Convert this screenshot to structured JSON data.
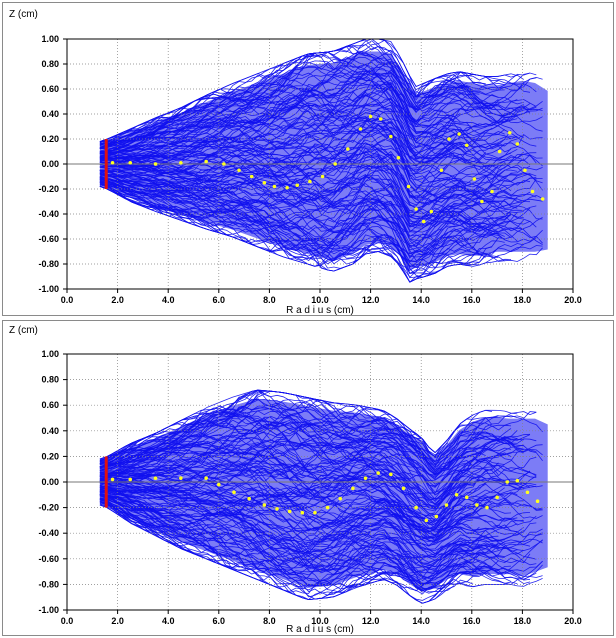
{
  "colors": {
    "trajectory": "#1010ee",
    "particle": "#ffff20",
    "emitter": "#e01010",
    "grid": "#808080",
    "zero_line": "#777777"
  },
  "chart_data": [
    {
      "type": "line",
      "title": "",
      "xlabel": "R a d i u s (cm)",
      "ylabel": "Z (cm)",
      "xlim": [
        0.0,
        20.0
      ],
      "ylim": [
        -1.0,
        1.0
      ],
      "xticks": [
        "0.0",
        "2.0",
        "4.0",
        "6.0",
        "8.0",
        "10.0",
        "12.0",
        "14.0",
        "16.0",
        "18.0",
        "20.0"
      ],
      "yticks": [
        "1.00",
        "0.80",
        "0.60",
        "0.40",
        "0.20",
        "0.00",
        "-0.20",
        "-0.40",
        "-0.60",
        "-0.80",
        "-1.00"
      ],
      "grid": true,
      "emitter": {
        "x": 1.55,
        "y_range": [
          -0.2,
          0.2
        ]
      },
      "envelope": {
        "x": [
          1.3,
          1.6,
          2.5,
          3.5,
          4.5,
          5.5,
          6.5,
          7.5,
          8.5,
          9.5,
          10.5,
          11.3,
          11.8,
          12.3,
          12.8,
          13.2,
          13.5,
          13.8,
          14.5,
          15.0,
          15.5,
          16.0,
          16.5,
          17.0,
          17.5,
          18.0,
          18.5,
          19.0
        ],
        "upper": [
          0.18,
          0.2,
          0.28,
          0.37,
          0.45,
          0.55,
          0.64,
          0.72,
          0.8,
          0.88,
          0.9,
          0.96,
          1.0,
          1.0,
          0.98,
          0.85,
          0.72,
          0.62,
          0.68,
          0.72,
          0.74,
          0.72,
          0.7,
          0.7,
          0.72,
          0.74,
          0.72,
          0.65
        ],
        "lower": [
          -0.18,
          -0.2,
          -0.3,
          -0.38,
          -0.45,
          -0.52,
          -0.58,
          -0.66,
          -0.74,
          -0.8,
          -0.86,
          -0.8,
          -0.72,
          -0.7,
          -0.74,
          -0.82,
          -0.95,
          -0.92,
          -0.88,
          -0.82,
          -0.8,
          -0.82,
          -0.8,
          -0.78,
          -0.78,
          -0.78,
          -0.78,
          -0.76
        ]
      },
      "centroid": {
        "x": [
          1.8,
          2.5,
          3.5,
          4.5,
          5.5,
          6.2,
          6.8,
          7.3,
          7.8,
          8.2,
          8.7,
          9.1,
          9.6,
          10.1,
          10.6,
          11.1,
          11.6,
          12.0,
          12.4,
          12.8,
          13.1,
          13.5,
          13.8,
          14.1,
          14.4,
          14.8,
          15.1,
          15.5,
          15.8,
          16.1,
          16.4,
          16.8,
          17.1,
          17.5,
          17.8,
          18.1,
          18.4,
          18.8
        ],
        "y": [
          0.01,
          0.01,
          0.0,
          0.01,
          0.02,
          0.0,
          -0.05,
          -0.1,
          -0.15,
          -0.18,
          -0.19,
          -0.17,
          -0.14,
          -0.1,
          0.0,
          0.12,
          0.28,
          0.38,
          0.36,
          0.22,
          0.05,
          -0.18,
          -0.36,
          -0.46,
          -0.38,
          -0.05,
          0.2,
          0.24,
          0.15,
          -0.12,
          -0.3,
          -0.22,
          0.1,
          0.25,
          0.16,
          -0.05,
          -0.22,
          -0.28
        ]
      }
    },
    {
      "type": "line",
      "title": "",
      "xlabel": "R a d i u s (cm)",
      "ylabel": "Z (cm)",
      "xlim": [
        0.0,
        20.0
      ],
      "ylim": [
        -1.0,
        1.0
      ],
      "xticks": [
        "0.0",
        "2.0",
        "4.0",
        "6.0",
        "8.0",
        "10.0",
        "12.0",
        "14.0",
        "16.0",
        "18.0",
        "20.0"
      ],
      "yticks": [
        "1.00",
        "0.80",
        "0.60",
        "0.40",
        "0.20",
        "0.00",
        "-0.20",
        "-0.40",
        "-0.60",
        "-0.80",
        "-1.00"
      ],
      "grid": true,
      "emitter": {
        "x": 1.55,
        "y_range": [
          -0.2,
          0.2
        ]
      },
      "envelope": {
        "x": [
          1.3,
          1.6,
          2.5,
          3.5,
          4.5,
          5.5,
          6.5,
          7.5,
          8.5,
          9.5,
          10.5,
          11.5,
          12.5,
          13.0,
          13.5,
          14.0,
          14.5,
          15.0,
          15.5,
          16.0,
          16.5,
          17.0,
          17.5,
          18.0,
          18.5,
          19.0
        ],
        "upper": [
          0.18,
          0.2,
          0.3,
          0.38,
          0.48,
          0.58,
          0.66,
          0.72,
          0.7,
          0.66,
          0.62,
          0.6,
          0.56,
          0.5,
          0.42,
          0.35,
          0.22,
          0.32,
          0.45,
          0.52,
          0.56,
          0.56,
          0.55,
          0.55,
          0.55,
          0.5
        ],
        "lower": [
          -0.18,
          -0.2,
          -0.32,
          -0.42,
          -0.52,
          -0.6,
          -0.68,
          -0.76,
          -0.84,
          -0.92,
          -0.9,
          -0.82,
          -0.76,
          -0.8,
          -0.88,
          -0.95,
          -0.92,
          -0.85,
          -0.8,
          -0.82,
          -0.8,
          -0.8,
          -0.8,
          -0.82,
          -0.78,
          -0.74
        ]
      },
      "centroid": {
        "x": [
          1.8,
          2.5,
          3.5,
          4.5,
          5.5,
          6.0,
          6.6,
          7.2,
          7.8,
          8.3,
          8.8,
          9.3,
          9.8,
          10.3,
          10.8,
          11.3,
          11.8,
          12.3,
          12.8,
          13.3,
          13.8,
          14.2,
          14.6,
          15.0,
          15.4,
          15.8,
          16.2,
          16.6,
          17.0,
          17.4,
          17.8,
          18.2,
          18.6
        ],
        "y": [
          0.02,
          0.02,
          0.03,
          0.03,
          0.03,
          -0.02,
          -0.08,
          -0.13,
          -0.18,
          -0.21,
          -0.23,
          -0.24,
          -0.24,
          -0.2,
          -0.13,
          -0.05,
          0.03,
          0.07,
          0.06,
          -0.05,
          -0.2,
          -0.3,
          -0.27,
          -0.18,
          -0.1,
          -0.12,
          -0.18,
          -0.2,
          -0.12,
          0.0,
          0.01,
          -0.08,
          -0.15
        ]
      }
    }
  ]
}
